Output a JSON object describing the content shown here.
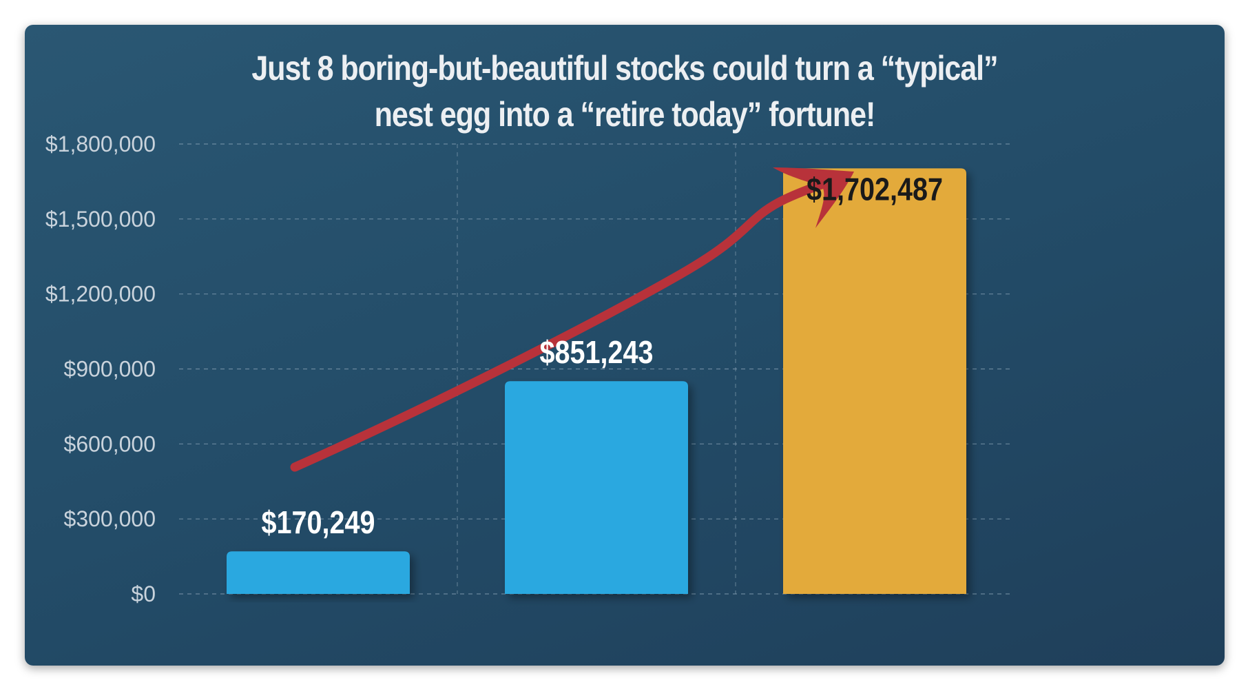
{
  "chart_data": {
    "type": "bar",
    "title_lines": [
      "Just 8 boring-but-beautiful stocks could turn a “typical”",
      "nest egg into a “retire today” fortune!"
    ],
    "categories": [
      "",
      "",
      ""
    ],
    "values": [
      170249,
      851243,
      1702487
    ],
    "data_labels": [
      "$170,249",
      "$851,243",
      "$1,702,487"
    ],
    "ylim": [
      0,
      1800000
    ],
    "yticks": [
      0,
      300000,
      600000,
      900000,
      1200000,
      1500000,
      1800000
    ],
    "ytick_labels": [
      "$0",
      "$300,000",
      "$600,000",
      "$900,000",
      "$1,200,000",
      "$1,500,000",
      "$1,800,000"
    ],
    "grid": true,
    "legend": "none",
    "colors": {
      "bar_blue": "#29a8e0",
      "bar_gold": "#e3aa3a",
      "label_light": "#ffffff",
      "label_dark": "#1a1a1a",
      "arrow": "#b8323a",
      "grid": "#8aa3b6"
    },
    "bar_colors": [
      "#29a8e0",
      "#29a8e0",
      "#e3aa3a"
    ],
    "label_colors": [
      "#ffffff",
      "#ffffff",
      "#1a1a1a"
    ],
    "annotation": "red-trend-arrow"
  }
}
